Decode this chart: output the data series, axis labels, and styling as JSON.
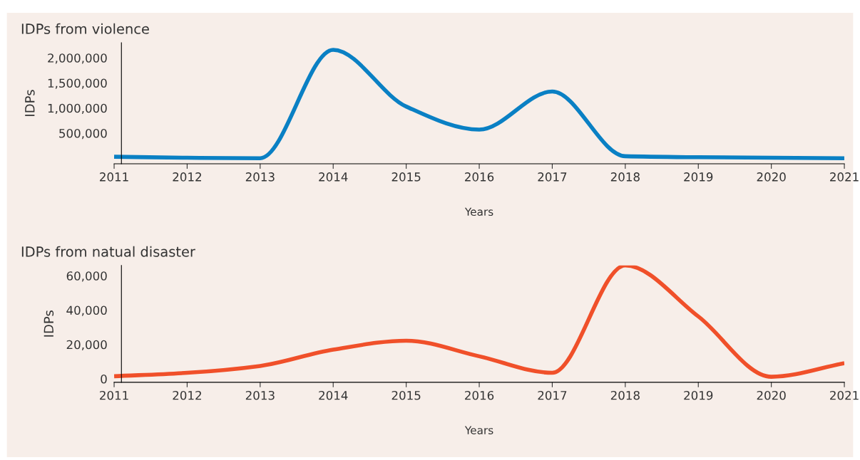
{
  "chart_data": [
    {
      "type": "line",
      "title": "IDPs from violence",
      "xlabel": "Years",
      "ylabel": "IDPs",
      "x": [
        2011,
        2012,
        2013,
        2014,
        2015,
        2016,
        2017,
        2018,
        2019,
        2020,
        2021
      ],
      "series": [
        {
          "color": "#0a80c4",
          "values": [
            30000,
            10000,
            0,
            2160000,
            1030000,
            570000,
            1330000,
            40000,
            20000,
            10000,
            0
          ]
        }
      ],
      "xlim": [
        2011,
        2021
      ],
      "xticks": [
        2011,
        2012,
        2013,
        2014,
        2015,
        2016,
        2017,
        2018,
        2019,
        2020,
        2021
      ],
      "ylim": [
        -110000,
        2300000
      ],
      "yticks": [
        {
          "value": 500000,
          "label": "500,000"
        },
        {
          "value": 1000000,
          "label": "1,000,000"
        },
        {
          "value": 1500000,
          "label": "1,500,000"
        },
        {
          "value": 2000000,
          "label": "2,000,000"
        }
      ],
      "grid": false,
      "marker": "none",
      "line_style": "solid"
    },
    {
      "type": "line",
      "title": "IDPs from natual disaster",
      "xlabel": "Years",
      "ylabel": "IDPs",
      "x": [
        2011,
        2012,
        2013,
        2014,
        2015,
        2016,
        2017,
        2018,
        2019,
        2020,
        2021
      ],
      "series": [
        {
          "color": "#f0502a",
          "values": [
            1500,
            3500,
            7500,
            17000,
            22200,
            13100,
            3500,
            66000,
            36300,
            1200,
            9100
          ]
        }
      ],
      "xlim": [
        2011,
        2021
      ],
      "xticks": [
        2011,
        2012,
        2013,
        2014,
        2015,
        2016,
        2017,
        2018,
        2019,
        2020,
        2021
      ],
      "ylim": [
        -2000,
        66000
      ],
      "yticks": [
        {
          "value": 0,
          "label": "0"
        },
        {
          "value": 20000,
          "label": "20,000"
        },
        {
          "value": 40000,
          "label": "40,000"
        },
        {
          "value": 60000,
          "label": "60,000"
        }
      ],
      "grid": false,
      "marker": "none",
      "line_style": "solid"
    }
  ]
}
